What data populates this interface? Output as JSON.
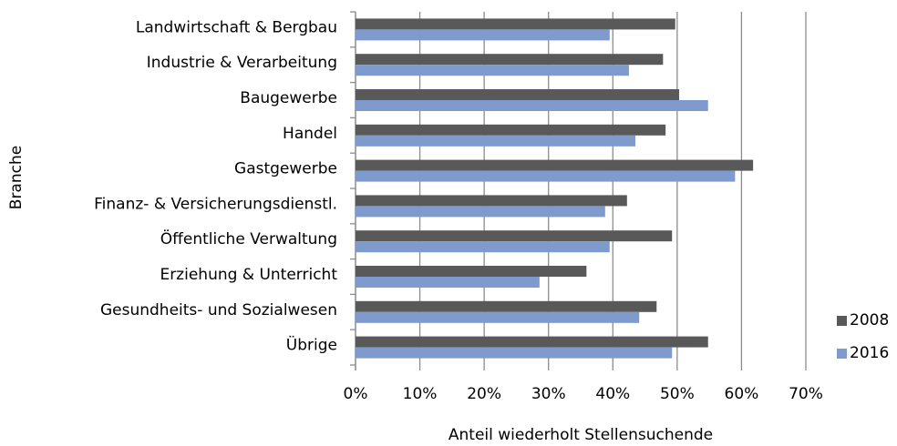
{
  "chart_data": {
    "type": "bar",
    "orientation": "horizontal",
    "x_label": "Anteil wiederholt Stellensuchende",
    "y_label": "Branche",
    "categories": [
      "Landwirtschaft & Bergbau",
      "Industrie & Verarbeitung",
      "Baugewerbe",
      "Handel",
      "Gastgewerbe",
      "Finanz- & Versicherungsdienstl.",
      "Öffentliche Verwaltung",
      "Erziehung & Unterricht",
      "Gesundheits- und Sozialwesen",
      "Übrige"
    ],
    "series": [
      {
        "name": "2008",
        "color": "#595959",
        "values": [
          49.7,
          47.8,
          50.3,
          48.2,
          61.8,
          42.2,
          49.2,
          35.9,
          46.8,
          54.8
        ]
      },
      {
        "name": "2016",
        "color": "#7f9bcd",
        "values": [
          39.5,
          42.5,
          54.8,
          43.5,
          59.0,
          38.8,
          39.5,
          28.6,
          44.1,
          49.2
        ]
      }
    ],
    "xlim": [
      0,
      70
    ],
    "xticks": [
      {
        "value": 0,
        "label": "0%"
      },
      {
        "value": 10,
        "label": "10%"
      },
      {
        "value": 20,
        "label": "20%"
      },
      {
        "value": 30,
        "label": "30%"
      },
      {
        "value": 40,
        "label": "40%"
      },
      {
        "value": 50,
        "label": "50%"
      },
      {
        "value": 60,
        "label": "60%"
      },
      {
        "value": 70,
        "label": "70%"
      }
    ],
    "grid": true,
    "legend": "right"
  }
}
